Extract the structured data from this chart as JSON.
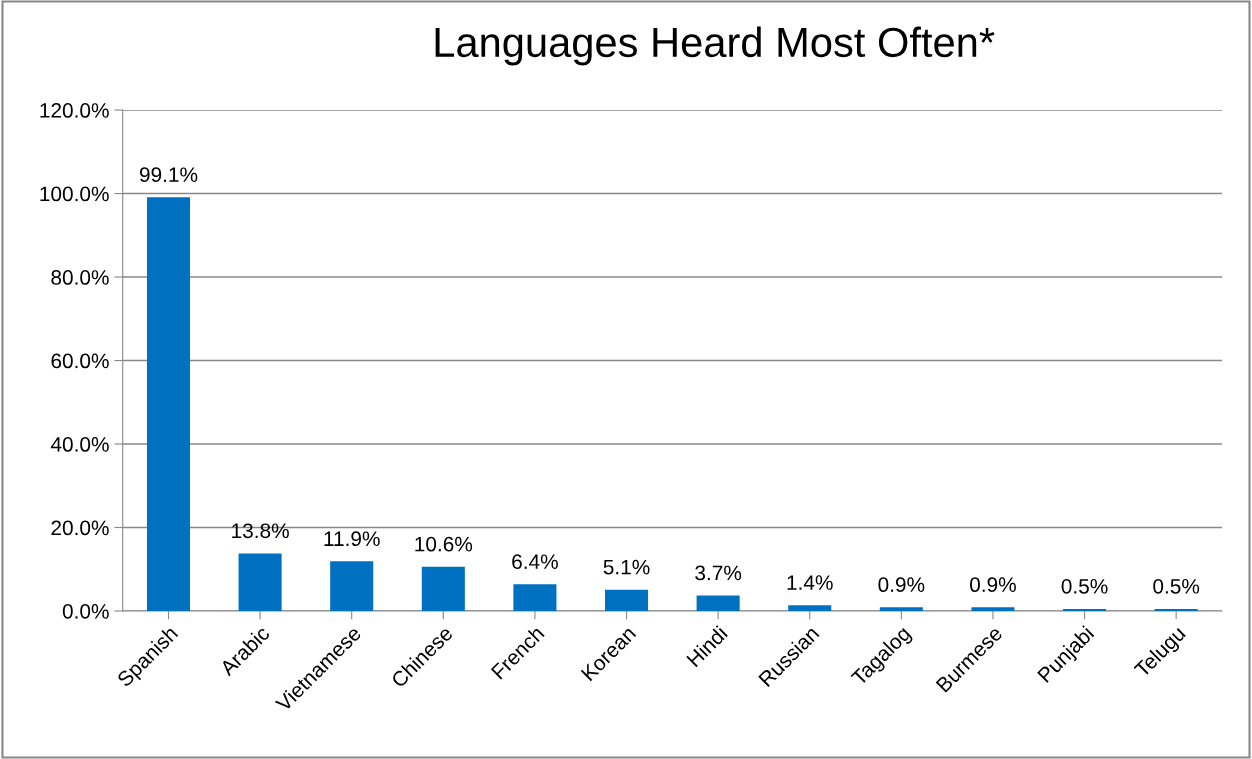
{
  "chart_data": {
    "type": "bar",
    "title": "Languages Heard Most Often*",
    "categories": [
      "Spanish",
      "Arabic",
      "Vietnamese",
      "Chinese",
      "French",
      "Korean",
      "Hindi",
      "Russian",
      "Tagalog",
      "Burmese",
      "Punjabi",
      "Telugu"
    ],
    "values": [
      99.1,
      13.8,
      11.9,
      10.6,
      6.4,
      5.1,
      3.7,
      1.4,
      0.9,
      0.9,
      0.5,
      0.5
    ],
    "value_labels": [
      "99.1%",
      "13.8%",
      "11.9%",
      "10.6%",
      "6.4%",
      "5.1%",
      "3.7%",
      "1.4%",
      "0.9%",
      "0.9%",
      "0.5%",
      "0.5%"
    ],
    "color": "#0070c0",
    "ylim": [
      0,
      120
    ],
    "yticks": [
      {
        "value": 0,
        "label": "0.0%"
      },
      {
        "value": 20,
        "label": "20.0%"
      },
      {
        "value": 40,
        "label": "40.0%"
      },
      {
        "value": 60,
        "label": "60.0%"
      },
      {
        "value": 80,
        "label": "80.0%"
      },
      {
        "value": 100,
        "label": "100.0%"
      },
      {
        "value": 120,
        "label": "120.0%"
      }
    ],
    "grid": "y",
    "legend": false
  }
}
